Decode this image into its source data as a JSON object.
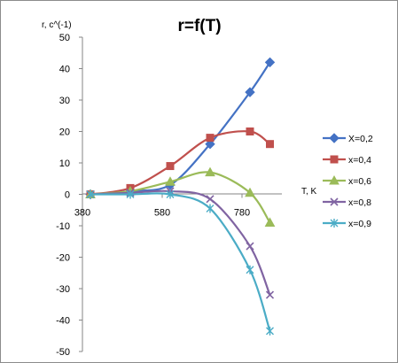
{
  "chart_data": {
    "type": "line",
    "title": "r=f(T)",
    "ylabel": "r, с^(-1)",
    "xlabel": "T, K",
    "x": [
      400,
      500,
      600,
      700,
      800,
      850
    ],
    "xticks": [
      380,
      580,
      780
    ],
    "yticks": [
      -50,
      -40,
      -30,
      -20,
      -10,
      0,
      10,
      20,
      30,
      40,
      50
    ],
    "xlim": [
      380,
      880
    ],
    "ylim": [
      -50,
      50
    ],
    "grid": false,
    "legend_position": "right",
    "series": [
      {
        "name": "X=0,2",
        "color": "#4472c4",
        "marker": "diamond",
        "values": [
          0,
          1,
          3,
          16,
          32.5,
          42
        ]
      },
      {
        "name": "x=0,4",
        "color": "#c0504d",
        "marker": "square",
        "values": [
          0,
          2,
          9,
          18,
          20,
          16
        ]
      },
      {
        "name": "x=0,6",
        "color": "#9bbb59",
        "marker": "triangle",
        "values": [
          0,
          1,
          4,
          7,
          0.5,
          -9
        ]
      },
      {
        "name": "x=0,8",
        "color": "#8064a2",
        "marker": "x",
        "values": [
          0,
          0.5,
          1,
          -1.5,
          -16.5,
          -32
        ]
      },
      {
        "name": "x=0,9",
        "color": "#4bacc6",
        "marker": "star",
        "values": [
          0,
          0,
          0,
          -4.5,
          -24,
          -43.5
        ]
      }
    ]
  }
}
